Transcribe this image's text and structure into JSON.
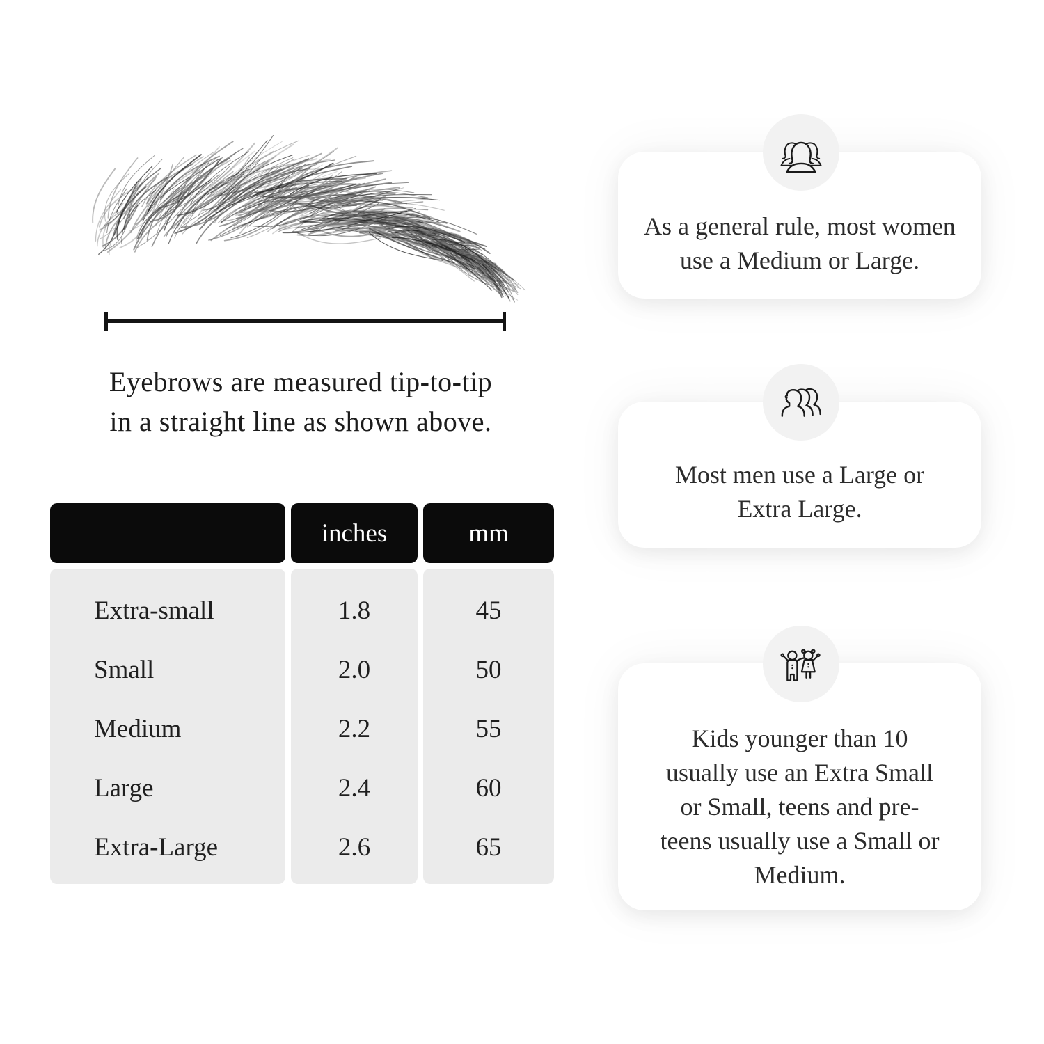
{
  "size_guide": {
    "caption": {
      "line1": "Eyebrows are measured tip-to-tip",
      "line2": "in a straight line as shown above."
    },
    "table": {
      "columns": [
        "",
        "inches",
        "mm"
      ],
      "rows": [
        {
          "label": "Extra-small",
          "inches": "1.8",
          "mm": "45"
        },
        {
          "label": "Small",
          "inches": "2.0",
          "mm": "50"
        },
        {
          "label": "Medium",
          "inches": "2.2",
          "mm": "55"
        },
        {
          "label": "Large",
          "inches": "2.4",
          "mm": "60"
        },
        {
          "label": "Extra-Large",
          "inches": "2.6",
          "mm": "65"
        }
      ]
    },
    "cards": [
      {
        "icon": "women-group-icon",
        "text": "As a general rule, most women use a Medium or Large."
      },
      {
        "icon": "men-group-icon",
        "text": "Most men use a Large or Extra Large."
      },
      {
        "icon": "kids-icon",
        "text": "Kids younger than 10 usually use an Extra Small or Small, teens and pre-teens usually use a Small or Medium."
      }
    ],
    "colors": {
      "background": "#ffffff",
      "table_header_bg": "#0b0b0b",
      "table_header_text": "#ffffff",
      "table_body_bg": "#ebebeb",
      "icon_circle_bg": "#f2f2f2",
      "line_color": "#141414",
      "text_color": "#1f1f1f"
    }
  }
}
